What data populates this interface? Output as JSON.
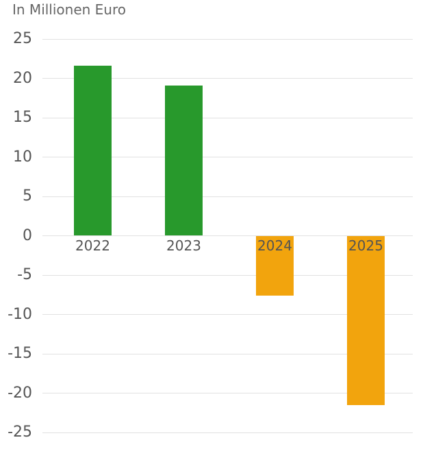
{
  "title": "In Millionen Euro",
  "colors": {
    "positive_bar": "#28992c",
    "negative_bar": "#f2a40d",
    "gridline": "#e1e1e1",
    "title_text": "#666666",
    "axis_text": "#555555",
    "background": "#ffffff"
  },
  "chart_data": {
    "type": "bar",
    "title": "In Millionen Euro",
    "categories": [
      "2022",
      "2023",
      "2024",
      "2025"
    ],
    "values": [
      21.6,
      19.1,
      -7.6,
      -21.5
    ],
    "xlabel": "",
    "ylabel": "In Millionen Euro",
    "ylim": [
      -25,
      25
    ],
    "yticks": [
      25,
      20,
      15,
      10,
      5,
      0,
      -5,
      -10,
      -15,
      -20,
      -25
    ],
    "grid": true,
    "legend": false,
    "color_rule": "positive values green, negative values orange",
    "x_labels_position": "at zero baseline, drawn over bars"
  }
}
